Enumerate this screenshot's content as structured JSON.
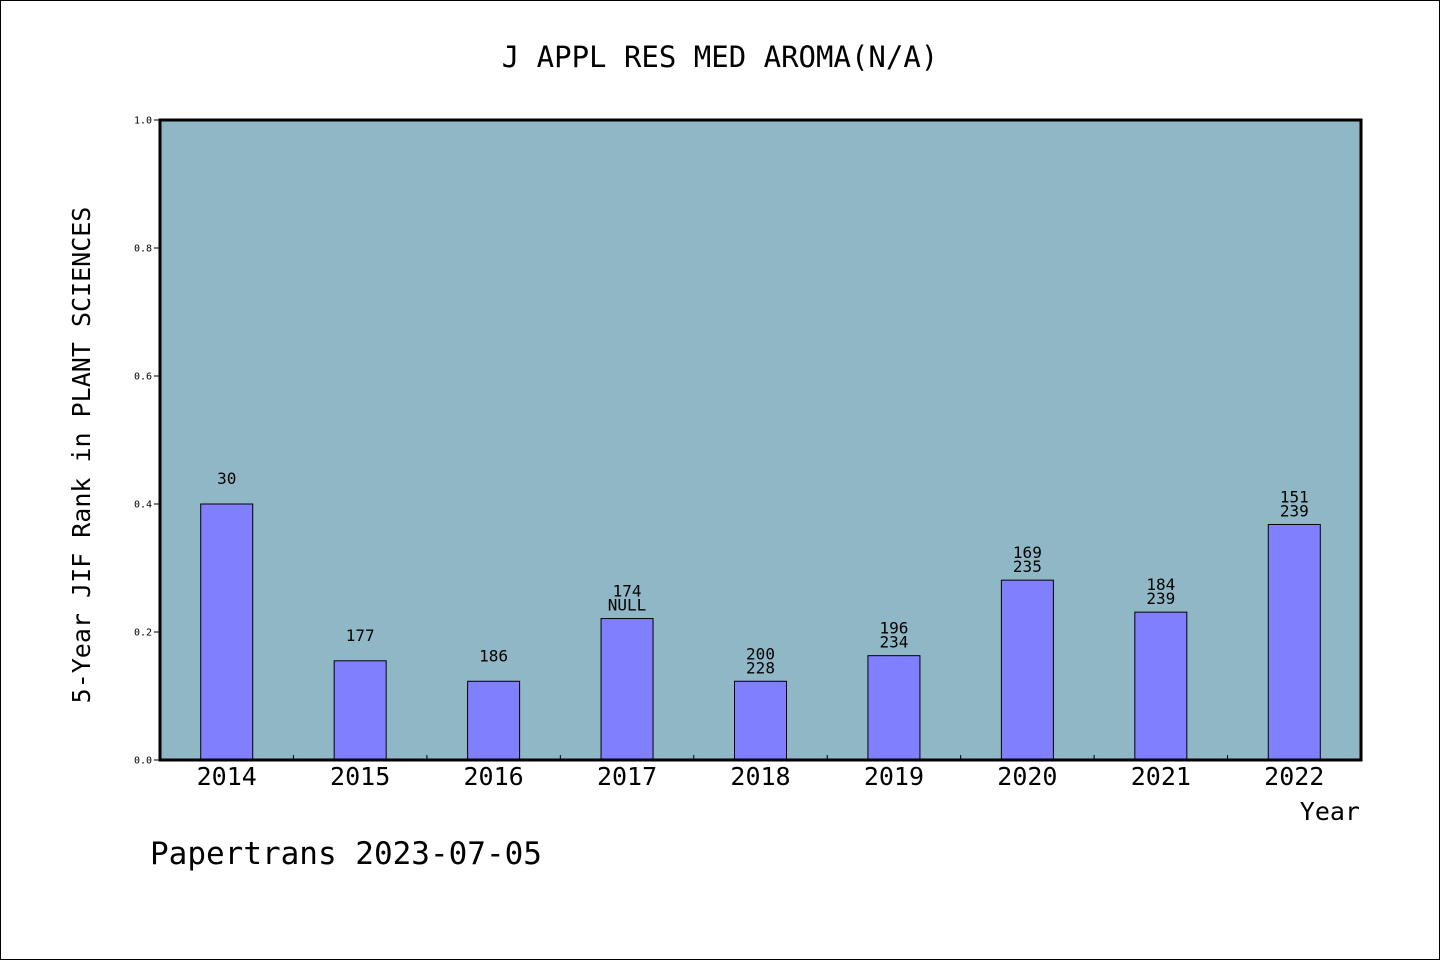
{
  "chart_data": {
    "type": "bar",
    "title": "J APPL RES MED AROMA(N/A)",
    "xlabel": "Year",
    "ylabel": "5-Year JIF Rank in PLANT SCIENCES",
    "ylim": [
      0,
      1.0
    ],
    "yticks": [
      "0.0",
      "0.2",
      "0.4",
      "0.6",
      "0.8",
      "1.0"
    ],
    "grid": false,
    "legend": "none",
    "categories": [
      "2014",
      "2015",
      "2016",
      "2017",
      "2018",
      "2019",
      "2020",
      "2021",
      "2022"
    ],
    "values": [
      0.4,
      0.155,
      0.123,
      0.221,
      0.123,
      0.163,
      0.281,
      0.231,
      0.368
    ],
    "labels_top": [
      "",
      "",
      "",
      "174",
      "200",
      "196",
      "169",
      "184",
      "151"
    ],
    "labels_bottom": [
      "30",
      "177",
      "186",
      "NULL",
      "228",
      "234",
      "235",
      "239",
      "239"
    ],
    "footer": "Papertrans 2023-07-05",
    "colors": {
      "plot_background": "#8fb7c5",
      "bar_fill": "#8080ff",
      "bar_stroke": "#000000"
    }
  }
}
